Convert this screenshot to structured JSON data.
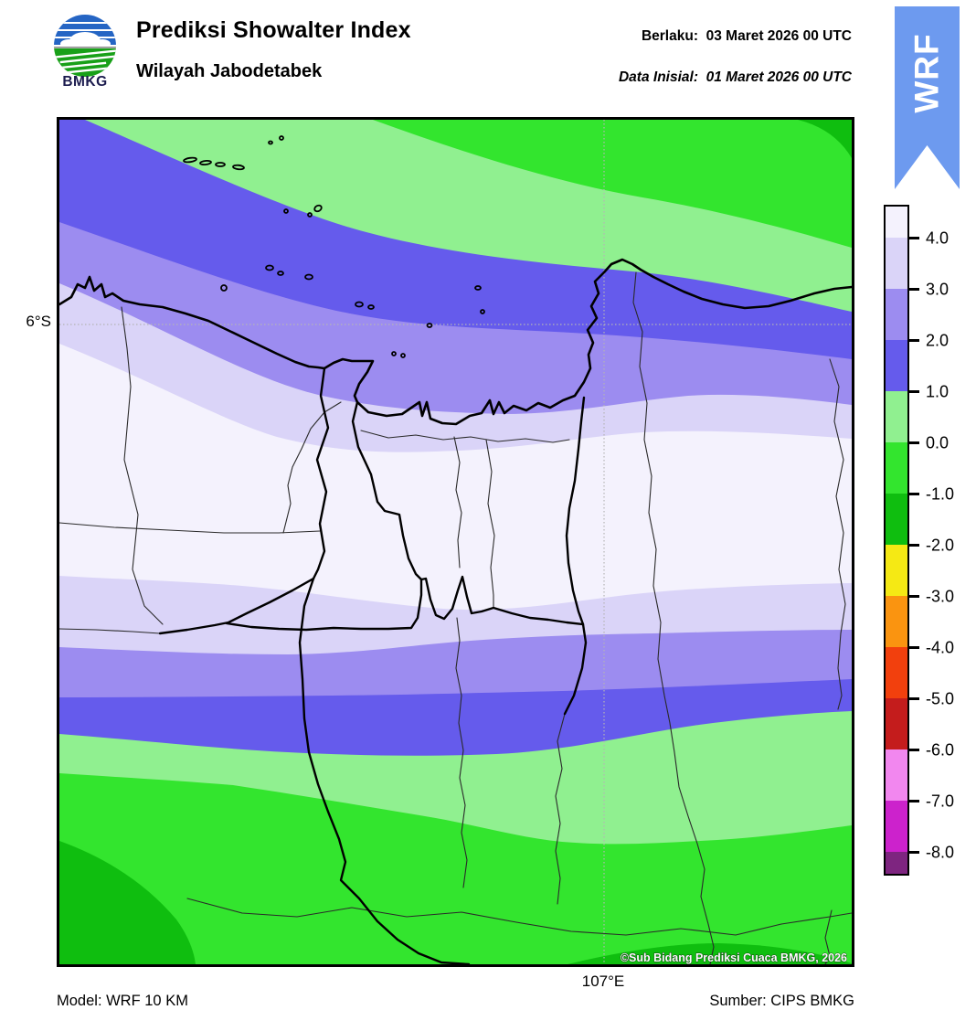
{
  "header": {
    "logo_text": "BMKG",
    "title": "Prediksi Showalter Index",
    "subtitle": "Wilayah Jabodetabek",
    "valid_label": "Berlaku:",
    "valid_value": "03 Maret 2026 00 UTC",
    "init_label": "Data Inisial:",
    "init_value": "01 Maret 2026 00 UTC"
  },
  "ribbon": {
    "label": "WRF",
    "color": "#6D9AEF"
  },
  "map": {
    "lat_tick": "6°S",
    "lon_tick": "107°E",
    "watermark": "©Sub Bidang Prediksi Cuaca BMKG, 2026"
  },
  "colorbar": {
    "tick_labels": [
      "4.0",
      "3.0",
      "2.0",
      "1.0",
      "0.0",
      "-1.0",
      "-2.0",
      "-3.0",
      "-4.0",
      "-5.0",
      "-6.0",
      "-7.0",
      "-8.0"
    ],
    "segment_colors_top_to_bottom": [
      "#F4F2FD",
      "#DAD4F8",
      "#9C8CF0",
      "#655BEC",
      "#90F090",
      "#33E52E",
      "#0FBE0F",
      "#F5E914",
      "#FA9410",
      "#F2400D",
      "#C41C1C",
      "#F287EF",
      "#CC22CC",
      "#7E2580"
    ]
  },
  "band_colors": {
    "gt4": "#F4F2FD",
    "b3to4": "#DAD4F8",
    "b2to3": "#9C8CF0",
    "b1to2": "#655BEC",
    "b0to1": "#90F090",
    "bm1to0": "#33E52E",
    "bm2tom1": "#0FBE0F"
  },
  "footer": {
    "model": "Model: WRF 10 KM",
    "source": "Sumber: CIPS BMKG"
  },
  "chart_data": {
    "type": "heatmap",
    "title": "Prediksi Showalter Index",
    "region": "Wilayah Jabodetabek",
    "valid_time": "03 Maret 2026 00 UTC",
    "initial_time": "01 Maret 2026 00 UTC",
    "model": "WRF 10 KM",
    "source": "CIPS BMKG",
    "colorbar_levels": [
      4.0,
      3.0,
      2.0,
      1.0,
      0.0,
      -1.0,
      -2.0,
      -3.0,
      -4.0,
      -5.0,
      -6.0,
      -7.0,
      -8.0
    ],
    "gridlines": {
      "lat": "6°S",
      "lon": "107°E"
    },
    "field_summary": "Showalter index above 4 over central Jabodetabek; bands decrease northward over the Java Sea through 3,2,1 to below 0 (green) and decrease southward over the interior to below -1 (dark green) at the bottom-left and bottom-center"
  }
}
